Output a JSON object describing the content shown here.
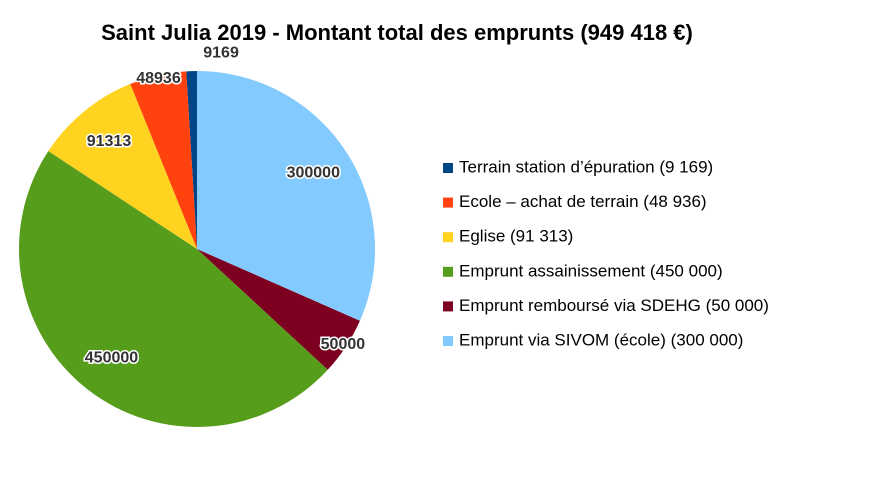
{
  "chart_data": {
    "type": "pie",
    "title": "Saint Julia 2019 - Montant total des emprunts (949 418 €)",
    "categories": [
      "Terrain station d’épuration (9 169)",
      "Ecole – achat de terrain (48 936)",
      "Eglise (91 313)",
      "Emprunt assainissement (450 000)",
      "Emprunt remboursé via  SDEHG (50 000)",
      "Emprunt via SIVOM (école) (300 000)"
    ],
    "values": [
      9169,
      48936,
      91313,
      450000,
      50000,
      300000
    ],
    "colors": [
      "#004586",
      "#ff420e",
      "#ffd320",
      "#579d1c",
      "#7e0021",
      "#83caff"
    ],
    "legend": "right"
  }
}
